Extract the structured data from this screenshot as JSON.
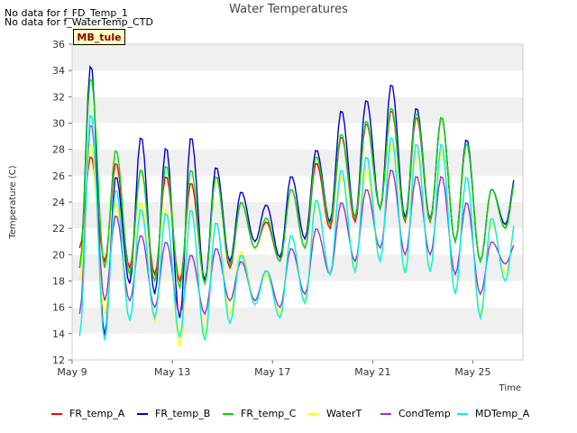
{
  "chart_data": {
    "type": "line",
    "title": "Water Temperatures",
    "xlabel": "Time",
    "ylabel": "Temperature (C)",
    "xlim": [
      "2023-05-09",
      "2023-05-27"
    ],
    "ylim": [
      12,
      36
    ],
    "yticks": [
      12,
      14,
      16,
      18,
      20,
      22,
      24,
      26,
      28,
      30,
      32,
      34,
      36
    ],
    "xticks": [
      {
        "value": "2023-05-09",
        "label": "May 9"
      },
      {
        "value": "2023-05-13",
        "label": "May 13"
      },
      {
        "value": "2023-05-17",
        "label": "May 17"
      },
      {
        "value": "2023-05-21",
        "label": "May 21"
      },
      {
        "value": "2023-05-25",
        "label": "May 25"
      }
    ],
    "grid": "horizontal bands",
    "legend_position": "bottom",
    "notes": [
      "No data for f_FD_Temp_1",
      "No data for f_WaterTemp_CTD"
    ],
    "tag_label": "MB_tule",
    "day_labels": [
      "2023-05-09",
      "2023-05-10",
      "2023-05-11",
      "2023-05-12",
      "2023-05-13",
      "2023-05-14",
      "2023-05-15",
      "2023-05-16",
      "2023-05-17",
      "2023-05-18",
      "2023-05-19",
      "2023-05-20",
      "2023-05-21",
      "2023-05-22",
      "2023-05-23",
      "2023-05-24",
      "2023-05-25",
      "2023-05-26"
    ],
    "series": [
      {
        "name": "FR_temp_A",
        "color": "#ff0000",
        "max": [
          27.5,
          27.0,
          26.5,
          26.0,
          25.5,
          26.0,
          24.0,
          22.5,
          25.0,
          27.0,
          29.0,
          30.0,
          31.0,
          30.5,
          30.5,
          28.5,
          25.0,
          26.0
        ],
        "min": [
          20.5,
          19.5,
          19.0,
          18.5,
          18.0,
          18.0,
          19.0,
          20.5,
          19.5,
          20.5,
          22.0,
          22.5,
          23.5,
          22.5,
          22.5,
          21.0,
          19.5,
          22.0
        ]
      },
      {
        "name": "FR_temp_B",
        "color": "#0000cc",
        "max": [
          34.5,
          26.0,
          29.0,
          28.2,
          29.0,
          26.7,
          24.8,
          23.8,
          26.0,
          28.0,
          31.0,
          31.8,
          33.0,
          31.2,
          30.5,
          28.8,
          25.0,
          26.3
        ],
        "min": [
          19.0,
          13.8,
          17.8,
          17.0,
          15.2,
          18.0,
          19.5,
          21.0,
          19.8,
          21.2,
          22.5,
          22.8,
          23.5,
          22.8,
          22.7,
          21.0,
          19.5,
          22.3
        ]
      },
      {
        "name": "FR_temp_C",
        "color": "#00dd00",
        "max": [
          33.5,
          28.0,
          26.5,
          26.8,
          26.5,
          26.0,
          24.0,
          22.8,
          25.0,
          27.5,
          29.2,
          30.2,
          31.2,
          30.8,
          30.5,
          28.5,
          25.0,
          26.0
        ],
        "min": [
          19.0,
          19.0,
          18.5,
          18.0,
          17.5,
          17.8,
          19.2,
          20.5,
          19.5,
          20.5,
          22.3,
          22.8,
          23.5,
          22.6,
          22.6,
          21.0,
          19.5,
          22.0
        ]
      },
      {
        "name": "WaterT",
        "color": "#ffff00",
        "max": [
          28.5,
          24.0,
          24.0,
          23.5,
          23.5,
          22.5,
          20.3,
          18.5,
          21.5,
          24.0,
          26.0,
          26.5,
          28.5,
          28.0,
          28.0,
          26.0,
          22.5,
          22.5
        ],
        "min": [
          18.0,
          15.5,
          15.0,
          15.0,
          13.0,
          14.0,
          15.5,
          16.5,
          15.5,
          16.5,
          18.5,
          19.0,
          19.5,
          18.8,
          18.8,
          17.0,
          15.5,
          18.5
        ]
      },
      {
        "name": "CondTemp",
        "color": "#9933cc",
        "max": [
          30.0,
          23.0,
          21.5,
          21.0,
          20.0,
          20.5,
          19.5,
          18.8,
          20.5,
          22.0,
          24.0,
          25.0,
          26.5,
          26.0,
          26.0,
          24.0,
          21.0,
          21.0
        ],
        "min": [
          15.5,
          16.5,
          16.5,
          16.0,
          15.5,
          15.5,
          16.5,
          16.5,
          16.0,
          17.0,
          18.5,
          19.5,
          20.5,
          20.0,
          20.0,
          18.5,
          17.0,
          19.3
        ]
      },
      {
        "name": "MDTemp_A",
        "color": "#00eeee",
        "max": [
          30.8,
          25.0,
          23.5,
          23.2,
          23.5,
          22.5,
          20.0,
          18.8,
          21.5,
          24.2,
          26.5,
          27.5,
          29.0,
          28.5,
          28.5,
          26.0,
          22.8,
          23.0
        ],
        "min": [
          13.8,
          13.5,
          15.0,
          15.2,
          13.7,
          13.5,
          14.8,
          16.2,
          15.2,
          16.3,
          18.5,
          18.7,
          19.5,
          18.6,
          18.7,
          17.0,
          15.2,
          18.0
        ]
      }
    ]
  }
}
